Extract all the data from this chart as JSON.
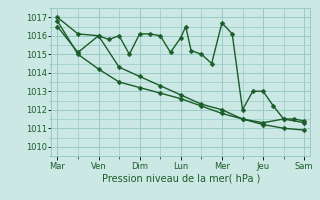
{
  "title": "Pression niveau de la mer( hPa )",
  "bg_color": "#cce8e4",
  "grid_color": "#99ccc6",
  "line_color": "#1a5c2a",
  "ylim": [
    1009.5,
    1017.5
  ],
  "yticks": [
    1010,
    1011,
    1012,
    1013,
    1014,
    1015,
    1016,
    1017
  ],
  "series1_x": [
    0,
    0.5,
    1,
    1.25,
    1.5,
    1.75,
    2,
    2.25,
    2.5,
    2.75,
    3,
    3.12,
    3.25,
    3.5,
    3.75,
    4,
    4.25,
    4.5,
    4.75,
    5,
    5.25,
    5.5,
    5.75,
    6
  ],
  "series1_y": [
    1017.0,
    1016.1,
    1016.0,
    1015.8,
    1016.0,
    1015.0,
    1016.1,
    1016.1,
    1016.0,
    1015.1,
    1015.9,
    1016.5,
    1015.2,
    1015.0,
    1014.5,
    1016.7,
    1016.1,
    1012.0,
    1013.0,
    1013.0,
    1012.2,
    1011.5,
    1011.5,
    1011.4
  ],
  "series2_x": [
    0,
    0.5,
    1,
    1.5,
    2,
    2.5,
    3,
    3.5,
    4,
    4.5,
    5,
    5.5,
    6
  ],
  "series2_y": [
    1016.5,
    1015.1,
    1016.0,
    1014.3,
    1013.8,
    1013.3,
    1012.8,
    1012.3,
    1012.0,
    1011.5,
    1011.3,
    1011.5,
    1011.3
  ],
  "series3_x": [
    0,
    0.5,
    1,
    1.5,
    2,
    2.5,
    3,
    3.5,
    4,
    4.5,
    5,
    5.5,
    6
  ],
  "series3_y": [
    1016.8,
    1015.0,
    1014.2,
    1013.5,
    1013.2,
    1012.9,
    1012.6,
    1012.2,
    1011.8,
    1011.5,
    1011.2,
    1011.0,
    1010.9
  ],
  "major_xtick_pos": [
    0,
    1,
    2,
    3,
    4,
    5,
    6
  ],
  "major_xtick_labels": [
    "Mar",
    "Ven",
    "Dim",
    "Lun",
    "Mer",
    "Jeu",
    "Sam"
  ],
  "minor_xtick_pos": [
    0.5,
    1.5,
    2.5,
    3.5,
    4.5,
    5.5
  ],
  "marker_size": 2.5,
  "linewidth": 1.0,
  "ylabel_fontsize": 6,
  "xlabel_fontsize": 7,
  "xtick_fontsize": 6
}
